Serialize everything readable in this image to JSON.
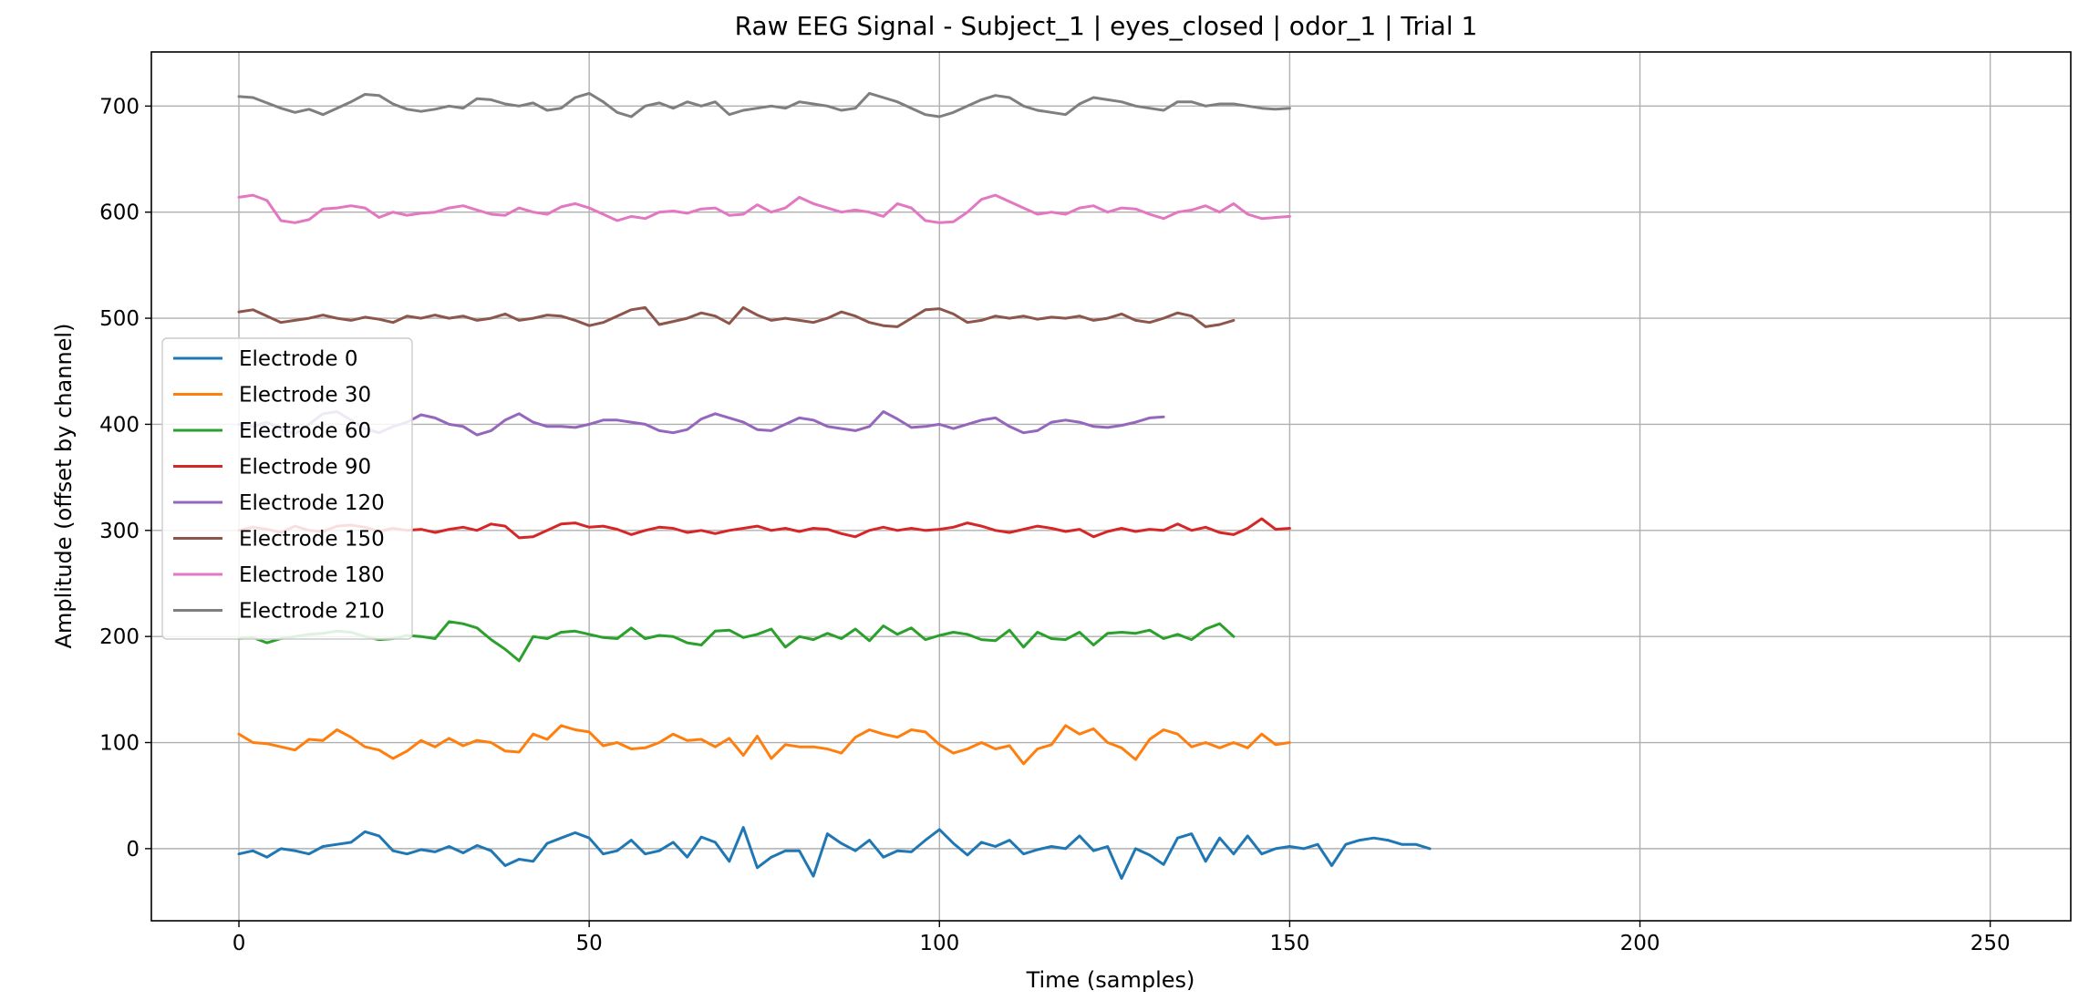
{
  "chart_data": {
    "type": "line",
    "title": "Raw EEG Signal - Subject_1 | eyes_closed | odor_1 | Trial 1",
    "xlabel": "Time (samples)",
    "ylabel": "Amplitude (offset by channel)",
    "xlim": [
      -12.5,
      261.5
    ],
    "ylim": [
      -68,
      751
    ],
    "xticks": [
      0,
      50,
      100,
      150,
      200,
      250
    ],
    "yticks": [
      0,
      100,
      200,
      300,
      400,
      500,
      600,
      700
    ],
    "grid": true,
    "legend_position": "center-left",
    "x_start": 0,
    "x_step": 2,
    "series": [
      {
        "name": "Electrode 0",
        "color": "#1f77b4",
        "values": [
          -5,
          -2,
          -8,
          0,
          -2,
          -5,
          2,
          4,
          6,
          16,
          12,
          -2,
          -5,
          -1,
          -3,
          2,
          -4,
          3,
          -2,
          -16,
          -10,
          -12,
          5,
          10,
          15,
          10,
          -5,
          -2,
          8,
          -5,
          -2,
          6,
          -8,
          11,
          6,
          -12,
          20,
          -18,
          -8,
          -2,
          -2,
          -26,
          14,
          5,
          -2,
          8,
          -8,
          -2,
          -3,
          8,
          18,
          5,
          -6,
          6,
          2,
          8,
          -5,
          -1,
          2,
          0,
          12,
          -2,
          2,
          -28,
          0,
          -6,
          -15,
          10,
          14,
          -12,
          10,
          -5,
          12,
          -5,
          0,
          2,
          0,
          4,
          -16,
          4,
          8,
          10,
          8,
          4,
          4,
          0
        ]
      },
      {
        "name": "Electrode 30",
        "color": "#ff7f0e",
        "values": [
          108,
          100,
          99,
          96,
          93,
          103,
          102,
          112,
          105,
          96,
          93,
          85,
          92,
          102,
          96,
          104,
          97,
          102,
          100,
          92,
          91,
          108,
          103,
          116,
          112,
          110,
          97,
          100,
          94,
          95,
          100,
          108,
          102,
          103,
          96,
          104,
          88,
          106,
          85,
          98,
          96,
          96,
          94,
          90,
          105,
          112,
          108,
          105,
          112,
          110,
          98,
          90,
          94,
          100,
          94,
          97,
          80,
          94,
          98,
          116,
          108,
          113,
          100,
          95,
          84,
          103,
          112,
          108,
          96,
          100,
          95,
          100,
          95,
          108,
          98,
          100
        ]
      },
      {
        "name": "Electrode 60",
        "color": "#2ca02c",
        "values": [
          198,
          199,
          194,
          198,
          200,
          202,
          203,
          205,
          204,
          200,
          197,
          198,
          201,
          200,
          198,
          214,
          212,
          208,
          197,
          188,
          177,
          200,
          198,
          204,
          205,
          202,
          199,
          198,
          208,
          198,
          201,
          200,
          194,
          192,
          205,
          206,
          199,
          202,
          207,
          190,
          200,
          197,
          203,
          198,
          207,
          196,
          210,
          202,
          208,
          197,
          201,
          204,
          202,
          197,
          196,
          206,
          190,
          204,
          198,
          197,
          204,
          192,
          203,
          204,
          203,
          206,
          198,
          202,
          197,
          207,
          212,
          200
        ]
      },
      {
        "name": "Electrode 90",
        "color": "#d62728",
        "values": [
          300,
          303,
          301,
          298,
          304,
          300,
          299,
          304,
          305,
          303,
          299,
          302,
          300,
          301,
          298,
          301,
          303,
          300,
          306,
          304,
          293,
          294,
          300,
          306,
          307,
          303,
          304,
          301,
          296,
          300,
          303,
          302,
          298,
          300,
          297,
          300,
          302,
          304,
          300,
          302,
          299,
          302,
          301,
          297,
          294,
          300,
          303,
          300,
          302,
          300,
          301,
          303,
          307,
          304,
          300,
          298,
          301,
          304,
          302,
          299,
          301,
          294,
          299,
          302,
          299,
          301,
          300,
          306,
          300,
          303,
          298,
          296,
          302,
          311,
          301,
          302
        ]
      },
      {
        "name": "Electrode 120",
        "color": "#9467bd",
        "values": [
          400,
          398,
          402,
          395,
          391,
          400,
          410,
          412,
          404,
          396,
          392,
          398,
          402,
          409,
          406,
          400,
          398,
          390,
          394,
          404,
          410,
          402,
          398,
          398,
          397,
          400,
          404,
          404,
          402,
          400,
          394,
          392,
          395,
          405,
          410,
          406,
          402,
          395,
          394,
          400,
          406,
          404,
          398,
          396,
          394,
          398,
          412,
          405,
          397,
          398,
          400,
          396,
          400,
          404,
          406,
          398,
          392,
          394,
          402,
          404,
          402,
          398,
          397,
          399,
          402,
          406,
          407
        ]
      },
      {
        "name": "Electrode 150",
        "color": "#8c564b",
        "values": [
          506,
          508,
          502,
          496,
          498,
          500,
          503,
          500,
          498,
          501,
          499,
          496,
          502,
          500,
          503,
          500,
          502,
          498,
          500,
          504,
          498,
          500,
          503,
          502,
          498,
          493,
          496,
          502,
          508,
          510,
          494,
          497,
          500,
          505,
          502,
          495,
          510,
          503,
          498,
          500,
          498,
          496,
          500,
          506,
          502,
          496,
          493,
          492,
          500,
          508,
          509,
          504,
          496,
          498,
          502,
          500,
          502,
          499,
          501,
          500,
          502,
          498,
          500,
          504,
          498,
          496,
          500,
          505,
          502,
          492,
          494,
          498
        ]
      },
      {
        "name": "Electrode 180",
        "color": "#e377c2",
        "values": [
          614,
          616,
          611,
          592,
          590,
          593,
          603,
          604,
          606,
          604,
          595,
          600,
          597,
          599,
          600,
          604,
          606,
          602,
          598,
          597,
          604,
          600,
          598,
          605,
          608,
          604,
          598,
          592,
          596,
          594,
          600,
          601,
          599,
          603,
          604,
          597,
          598,
          607,
          600,
          604,
          614,
          608,
          604,
          600,
          602,
          600,
          596,
          608,
          604,
          592,
          590,
          591,
          600,
          612,
          616,
          610,
          604,
          598,
          600,
          598,
          604,
          606,
          600,
          604,
          603,
          598,
          594,
          600,
          602,
          606,
          600,
          608,
          598,
          594,
          595,
          596
        ]
      },
      {
        "name": "Electrode 210",
        "color": "#7f7f7f",
        "values": [
          709,
          708,
          703,
          698,
          694,
          697,
          692,
          698,
          704,
          711,
          710,
          702,
          697,
          695,
          697,
          700,
          698,
          707,
          706,
          702,
          700,
          703,
          696,
          698,
          708,
          712,
          704,
          694,
          690,
          700,
          703,
          698,
          704,
          700,
          704,
          692,
          696,
          698,
          700,
          698,
          704,
          702,
          700,
          696,
          698,
          712,
          708,
          704,
          698,
          692,
          690,
          694,
          700,
          706,
          710,
          708,
          700,
          696,
          694,
          692,
          702,
          708,
          706,
          704,
          700,
          698,
          696,
          704,
          704,
          700,
          702,
          702,
          700,
          698,
          697,
          698
        ]
      }
    ]
  }
}
